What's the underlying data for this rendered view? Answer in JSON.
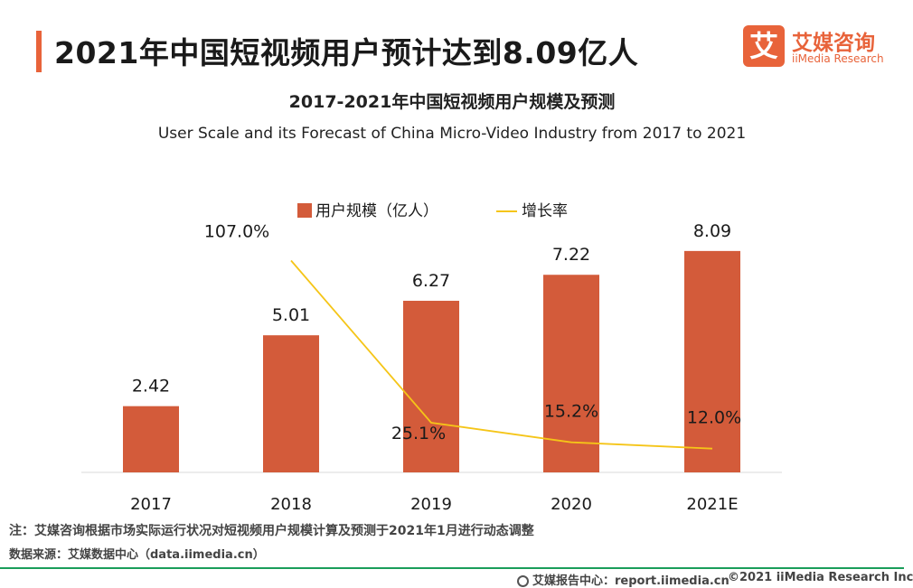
{
  "header": {
    "title": "2021年中国短视频用户预计达到8.09亿人",
    "logo_cn": "艾媒咨询",
    "logo_en": "iiMedia Research",
    "logo_mark": "艾"
  },
  "colors": {
    "bar": "#d35b3a",
    "line": "#f5c518",
    "accent": "#e8633a",
    "footer_line": "#1a9d5a"
  },
  "chart_data": {
    "type": "bar",
    "title": "2017-2021年中国短视频用户规模及预测",
    "subtitle": "User Scale and its Forecast of China Micro-Video Industry from 2017 to 2021",
    "categories": [
      "2017",
      "2018",
      "2019",
      "2020",
      "2021E"
    ],
    "series": [
      {
        "name": "用户规模（亿人）",
        "type": "bar",
        "values": [
          2.42,
          5.01,
          6.27,
          7.22,
          8.09
        ],
        "labels": [
          "2.42",
          "5.01",
          "6.27",
          "7.22",
          "8.09"
        ]
      },
      {
        "name": "增长率",
        "type": "line",
        "values": [
          null,
          107.0,
          25.1,
          15.2,
          12.0
        ],
        "labels": [
          "",
          "107.0%",
          "25.1%",
          "15.2%",
          "12.0%"
        ]
      }
    ],
    "ylim": [
      0,
      10
    ],
    "y2lim": [
      0,
      120
    ],
    "legend": "top"
  },
  "footer": {
    "note": "注：艾媒咨询根据市场实际运行状况对短视频用户规模计算及预测于2021年1月进行动态调整",
    "source": "数据来源：艾媒数据中心（data.iimedia.cn）",
    "report": "艾媒报告中心：report.iimedia.cn",
    "copyright": "©2021  iiMedia Research  Inc"
  }
}
